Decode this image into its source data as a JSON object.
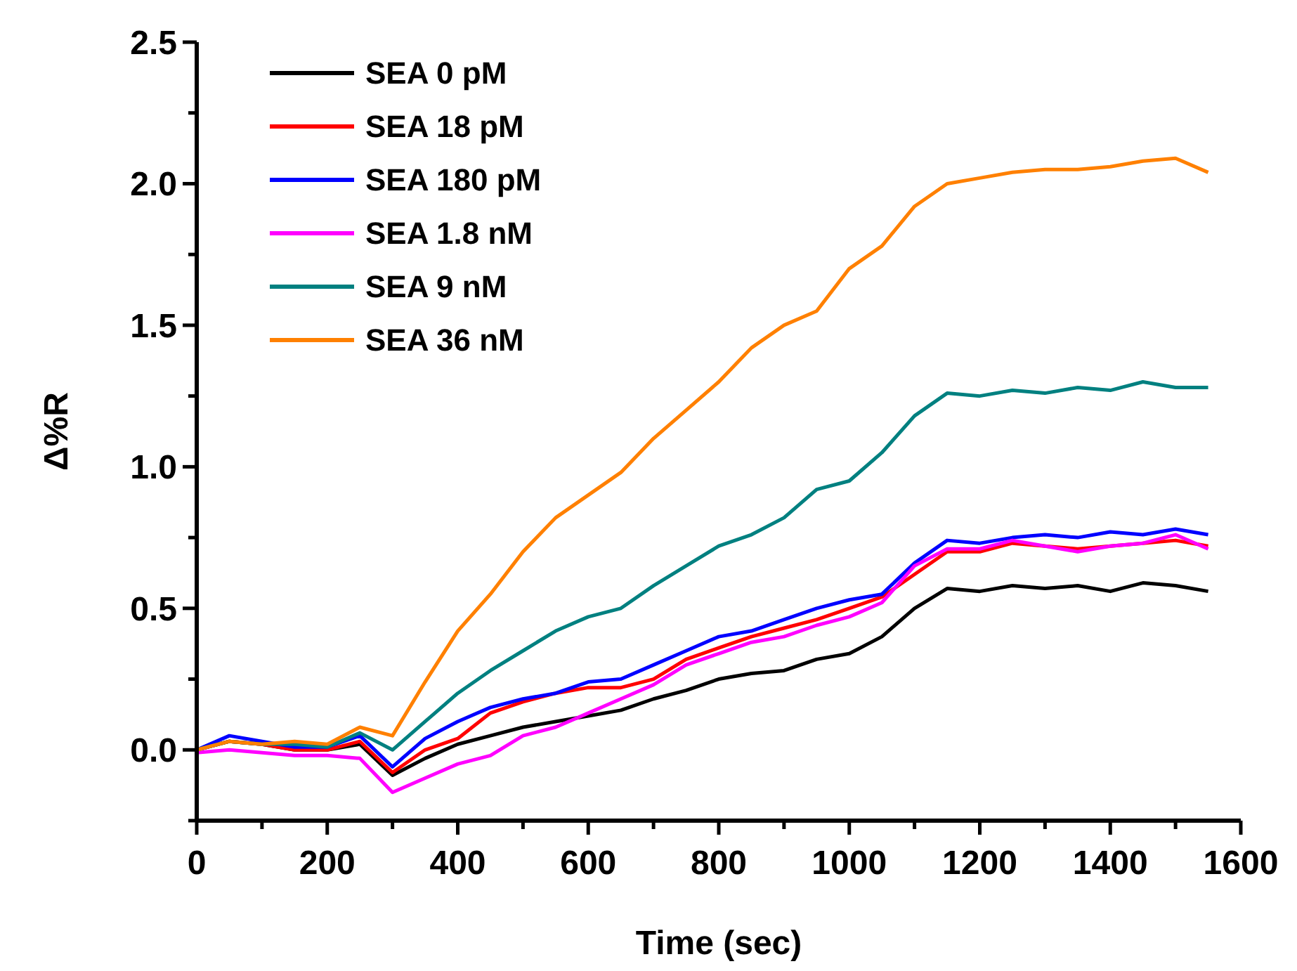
{
  "chart_data": {
    "type": "line",
    "xlabel": "Time (sec)",
    "ylabel": "Δ%R",
    "x": [
      0,
      50,
      100,
      150,
      200,
      250,
      300,
      350,
      400,
      450,
      500,
      550,
      600,
      650,
      700,
      750,
      800,
      850,
      900,
      950,
      1000,
      1050,
      1100,
      1150,
      1200,
      1250,
      1300,
      1350,
      1400,
      1450,
      1500,
      1550
    ],
    "series": [
      {
        "name": "SEA 0 pM",
        "color": "#000000",
        "values": [
          0,
          0.03,
          0.02,
          0,
          0,
          0.02,
          -0.09,
          -0.03,
          0.02,
          0.05,
          0.08,
          0.1,
          0.12,
          0.14,
          0.18,
          0.21,
          0.25,
          0.27,
          0.28,
          0.32,
          0.34,
          0.4,
          0.5,
          0.57,
          0.56,
          0.58,
          0.57,
          0.58,
          0.56,
          0.59,
          0.58,
          0.56
        ]
      },
      {
        "name": "SEA 18 pM",
        "color": "#ff0000",
        "values": [
          0,
          0.03,
          0.02,
          0,
          0,
          0.03,
          -0.08,
          0,
          0.04,
          0.13,
          0.17,
          0.2,
          0.22,
          0.22,
          0.25,
          0.32,
          0.36,
          0.4,
          0.43,
          0.46,
          0.5,
          0.54,
          0.62,
          0.7,
          0.7,
          0.73,
          0.72,
          0.71,
          0.72,
          0.73,
          0.74,
          0.72
        ]
      },
      {
        "name": "SEA 180 pM",
        "color": "#0000ff",
        "values": [
          0,
          0.05,
          0.03,
          0.01,
          0.01,
          0.05,
          -0.06,
          0.04,
          0.1,
          0.15,
          0.18,
          0.2,
          0.24,
          0.25,
          0.3,
          0.35,
          0.4,
          0.42,
          0.46,
          0.5,
          0.53,
          0.55,
          0.66,
          0.74,
          0.73,
          0.75,
          0.76,
          0.75,
          0.77,
          0.76,
          0.78,
          0.76
        ]
      },
      {
        "name": "SEA 1.8 nM",
        "color": "#ff00ff",
        "values": [
          -0.01,
          0,
          -0.01,
          -0.02,
          -0.02,
          -0.03,
          -0.15,
          -0.1,
          -0.05,
          -0.02,
          0.05,
          0.08,
          0.13,
          0.18,
          0.23,
          0.3,
          0.34,
          0.38,
          0.4,
          0.44,
          0.47,
          0.52,
          0.65,
          0.71,
          0.71,
          0.74,
          0.72,
          0.7,
          0.72,
          0.73,
          0.76,
          0.71
        ]
      },
      {
        "name": "SEA 9 nM",
        "color": "#008080",
        "values": [
          0,
          0.03,
          0.02,
          0.02,
          0.01,
          0.06,
          0,
          0.1,
          0.2,
          0.28,
          0.35,
          0.42,
          0.47,
          0.5,
          0.58,
          0.65,
          0.72,
          0.76,
          0.82,
          0.92,
          0.95,
          1.05,
          1.18,
          1.26,
          1.25,
          1.27,
          1.26,
          1.28,
          1.27,
          1.3,
          1.28,
          1.28
        ]
      },
      {
        "name": "SEA 36 nM",
        "color": "#ff8000",
        "values": [
          0,
          0.03,
          0.02,
          0.03,
          0.02,
          0.08,
          0.05,
          0.24,
          0.42,
          0.55,
          0.7,
          0.82,
          0.9,
          0.98,
          1.1,
          1.2,
          1.3,
          1.42,
          1.5,
          1.55,
          1.7,
          1.78,
          1.92,
          2,
          2.02,
          2.04,
          2.05,
          2.05,
          2.06,
          2.08,
          2.09,
          2.04
        ]
      }
    ],
    "xlim": [
      0,
      1600
    ],
    "xticks": [
      0,
      {
        "value": 100,
        "label": null
      },
      200,
      {
        "value": 300,
        "label": null
      },
      400,
      {
        "value": 500,
        "label": null
      },
      600,
      {
        "value": 700,
        "label": null
      },
      800,
      {
        "value": 900,
        "label": null
      },
      1000,
      {
        "value": 1100,
        "label": null
      },
      1200,
      {
        "value": 1300,
        "label": null
      },
      1400,
      {
        "value": 1500,
        "label": null
      },
      1600
    ],
    "ylim": [
      -0.25,
      2.5
    ],
    "yticks": [
      {
        "value": -0.25,
        "label": null
      },
      {
        "value": 0,
        "label": "0.0"
      },
      {
        "value": 0.25,
        "label": null
      },
      0.5,
      {
        "value": 0.75,
        "label": null
      },
      {
        "value": 1,
        "label": "1.0"
      },
      {
        "value": 1.25,
        "label": null
      },
      1.5,
      {
        "value": 1.75,
        "label": null
      },
      {
        "value": 2,
        "label": "2.0"
      },
      {
        "value": 2.25,
        "label": null
      },
      2.5
    ],
    "legend": "top left",
    "grid": false,
    "line_style": "solid",
    "marker": "none"
  }
}
